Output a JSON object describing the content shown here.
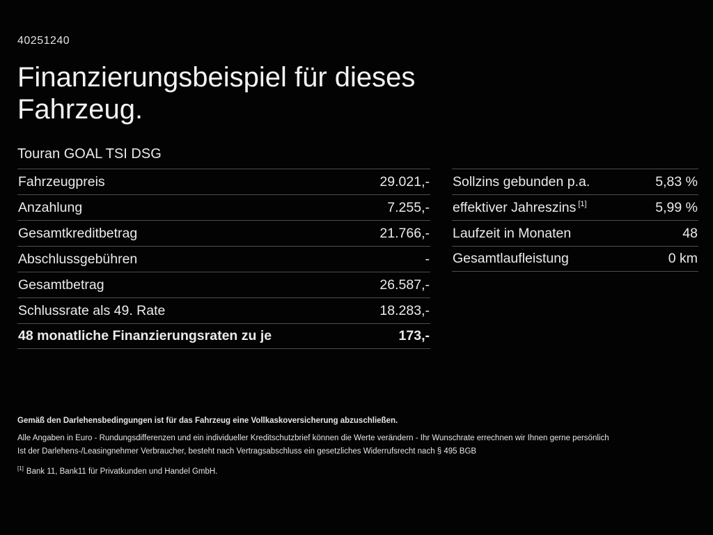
{
  "doc": {
    "id": "40251240",
    "title": "Finanzierungsbeispiel für dieses Fahrzeug.",
    "vehicle": "Touran GOAL TSI DSG"
  },
  "left_table": {
    "rows": [
      {
        "label": "Fahrzeugpreis",
        "value": "29.021,-"
      },
      {
        "label": "Anzahlung",
        "value": "7.255,-"
      },
      {
        "label": "Gesamtkreditbetrag",
        "value": "21.766,-"
      },
      {
        "label": "Abschlussgebühren",
        "value": "-"
      },
      {
        "label": "Gesamtbetrag",
        "value": "26.587,-"
      },
      {
        "label": "Schlussrate als 49. Rate",
        "value": "18.283,-"
      },
      {
        "label": "48 monatliche Finanzierungsraten zu je",
        "value": "173,-",
        "bold": true
      }
    ]
  },
  "right_table": {
    "rows": [
      {
        "label": "Sollzins gebunden p.a.",
        "value": "5,83 %"
      },
      {
        "label": "effektiver Jahreszins",
        "sup": "[1]",
        "value": "5,99 %"
      },
      {
        "label": "Laufzeit in Monaten",
        "value": "48"
      },
      {
        "label": "Gesamtlaufleistung",
        "value": "0 km"
      }
    ]
  },
  "footer": {
    "insurance_note": "Gemäß den Darlehensbedingungen ist für das Fahrzeug eine Vollkaskoversicherung abzuschließen.",
    "notes": [
      "Alle Angaben in Euro - Rundungsdifferenzen und ein individueller Kreditschutzbrief können die Werte verändern - Ihr Wunschrate errechnen wir Ihnen gerne persönlich",
      "Ist der Darlehens-/Leasingnehmer Verbraucher, besteht nach Vertragsabschluss ein gesetzliches Widerrufsrecht nach § 495 BGB"
    ],
    "footnote_marker": "[1]",
    "footnote_text": "Bank 11, Bank11 für Privatkunden und Handel GmbH."
  }
}
